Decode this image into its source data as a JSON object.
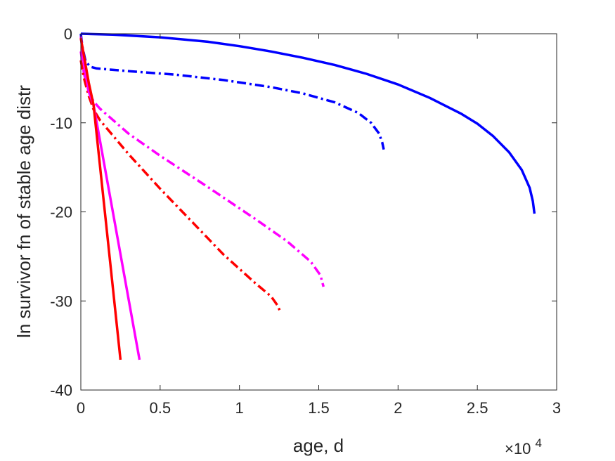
{
  "chart_data": {
    "type": "line",
    "xlabel": "age, d",
    "ylabel": "ln survivor fn of stable age distr",
    "x_multiplier": {
      "base": "×10",
      "exponent": "4"
    },
    "xlim": [
      0,
      30000
    ],
    "ylim": [
      -40,
      0
    ],
    "xticks": [
      0,
      5000,
      10000,
      15000,
      20000,
      25000,
      30000
    ],
    "xtick_labels": [
      "0",
      "0.5",
      "1",
      "1.5",
      "2",
      "2.5",
      "3"
    ],
    "yticks": [
      0,
      -10,
      -20,
      -30,
      -40
    ],
    "ytick_labels": [
      "0",
      "-10",
      "-20",
      "-30",
      "-40"
    ],
    "grid": false,
    "box": true,
    "series": [
      {
        "color": "#0000ff",
        "style": "solid",
        "points": [
          [
            0,
            0
          ],
          [
            2000,
            -0.1
          ],
          [
            5000,
            -0.4
          ],
          [
            8000,
            -0.9
          ],
          [
            10000,
            -1.4
          ],
          [
            12000,
            -2.0
          ],
          [
            14000,
            -2.7
          ],
          [
            16000,
            -3.5
          ],
          [
            18000,
            -4.5
          ],
          [
            20000,
            -5.7
          ],
          [
            22000,
            -7.2
          ],
          [
            24000,
            -9.0
          ],
          [
            25000,
            -10.1
          ],
          [
            26000,
            -11.5
          ],
          [
            27000,
            -13.3
          ],
          [
            27800,
            -15.3
          ],
          [
            28300,
            -17.3
          ],
          [
            28500,
            -18.8
          ],
          [
            28600,
            -20.2
          ]
        ]
      },
      {
        "color": "#0000ff",
        "style": "dashdot",
        "points": [
          [
            0,
            0
          ],
          [
            100,
            -1.5
          ],
          [
            300,
            -3.1
          ],
          [
            600,
            -3.7
          ],
          [
            1000,
            -3.9
          ],
          [
            3000,
            -4.2
          ],
          [
            6000,
            -4.6
          ],
          [
            9000,
            -5.2
          ],
          [
            12000,
            -6.0
          ],
          [
            14000,
            -6.7
          ],
          [
            16000,
            -7.7
          ],
          [
            17500,
            -8.9
          ],
          [
            18300,
            -10.0
          ],
          [
            18800,
            -11.2
          ],
          [
            19000,
            -12.2
          ],
          [
            19100,
            -13.0
          ]
        ]
      },
      {
        "color": "#ff00ff",
        "style": "dashdot",
        "points": [
          [
            0,
            -2.0
          ],
          [
            200,
            -4.5
          ],
          [
            500,
            -6.5
          ],
          [
            800,
            -7.6
          ],
          [
            1200,
            -8.4
          ],
          [
            3000,
            -11.2
          ],
          [
            5000,
            -13.7
          ],
          [
            8000,
            -17.2
          ],
          [
            11000,
            -20.8
          ],
          [
            13000,
            -23.3
          ],
          [
            14500,
            -25.6
          ],
          [
            15100,
            -27.1
          ],
          [
            15300,
            -28.4
          ]
        ]
      },
      {
        "color": "#ff0000",
        "style": "dashdot",
        "points": [
          [
            0,
            -3.0
          ],
          [
            200,
            -5.0
          ],
          [
            500,
            -7.0
          ],
          [
            800,
            -8.5
          ],
          [
            1200,
            -9.7
          ],
          [
            3000,
            -13.5
          ],
          [
            5000,
            -17.4
          ],
          [
            7000,
            -21.1
          ],
          [
            9000,
            -24.8
          ],
          [
            11000,
            -28.0
          ],
          [
            12000,
            -29.5
          ],
          [
            12400,
            -30.5
          ],
          [
            12600,
            -31.3
          ]
        ]
      },
      {
        "color": "#ff00ff",
        "style": "solid",
        "points": [
          [
            0,
            -0.3
          ],
          [
            200,
            -3.5
          ],
          [
            500,
            -6.5
          ],
          [
            800,
            -8.0
          ],
          [
            3700,
            -36.6
          ]
        ]
      },
      {
        "color": "#ff0000",
        "style": "solid",
        "points": [
          [
            0,
            -0.5
          ],
          [
            200,
            -2.5
          ],
          [
            500,
            -5.5
          ],
          [
            800,
            -8.0
          ],
          [
            2500,
            -36.6
          ]
        ]
      }
    ]
  }
}
